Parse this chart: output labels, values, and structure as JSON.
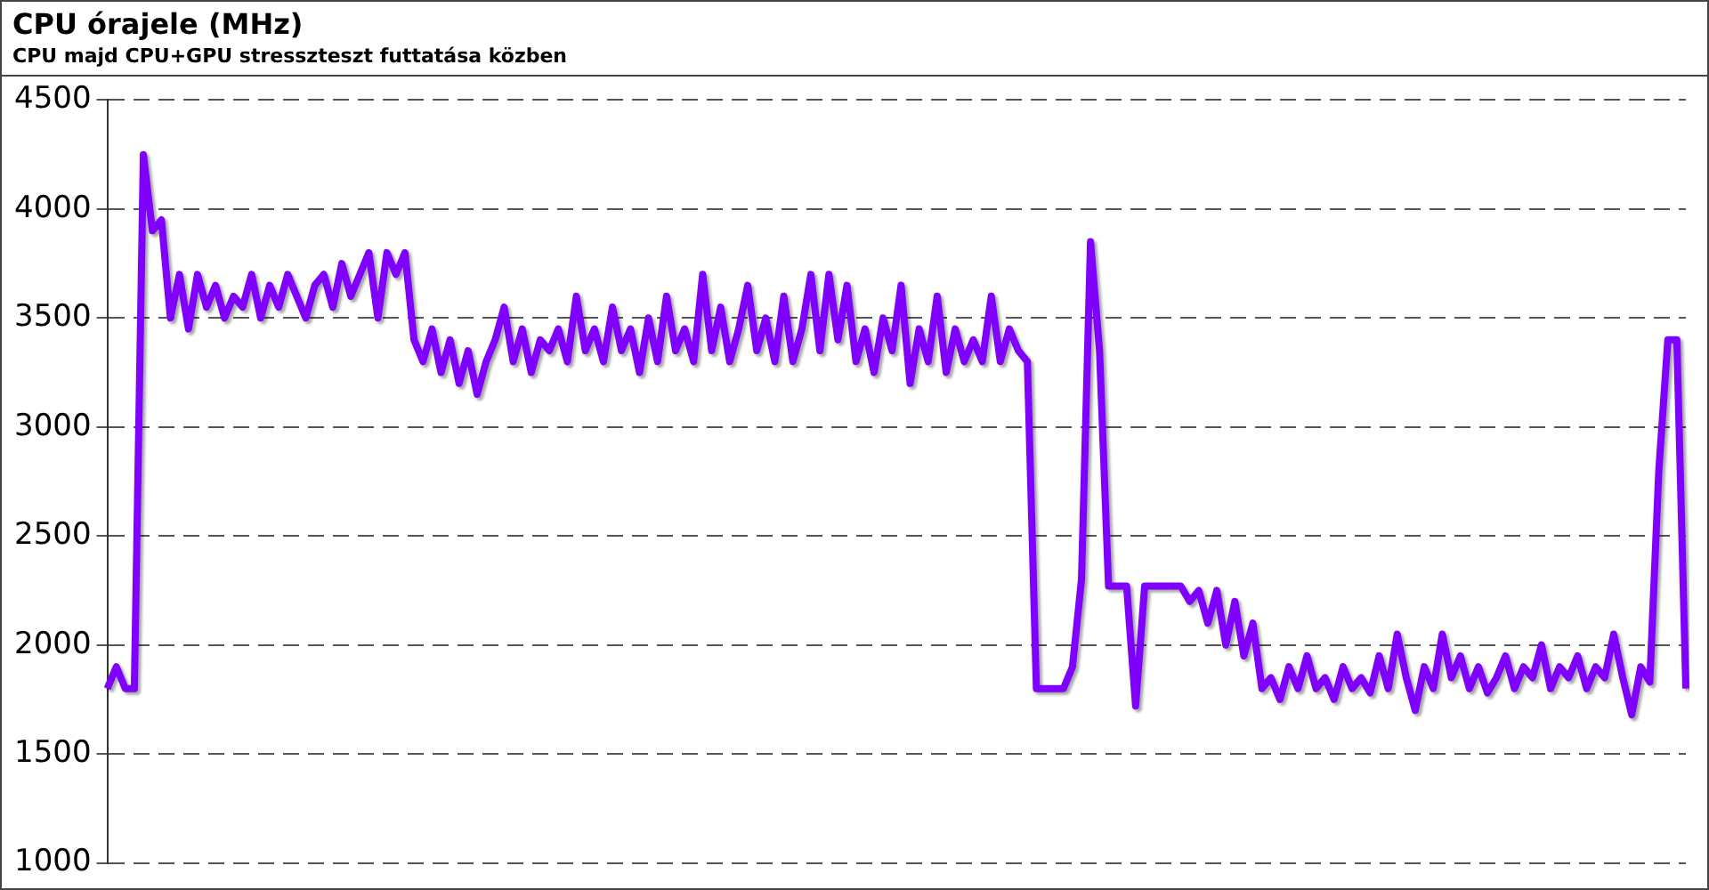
{
  "chart_data": {
    "type": "line",
    "title": "CPU órajele (MHz)",
    "subtitle": "CPU majd CPU+GPU stresszteszt futtatása közben",
    "categories": [
      null,
      null,
      null,
      null,
      null,
      null,
      null,
      null,
      null,
      null,
      null,
      null,
      null,
      null,
      null,
      null,
      null,
      null,
      null,
      null,
      null,
      null,
      null,
      null,
      null,
      null,
      null,
      null,
      null,
      null,
      null,
      null,
      null,
      null,
      null,
      null,
      null,
      null,
      null,
      null,
      null,
      null,
      null,
      null,
      null,
      null,
      null,
      null,
      null,
      null,
      null,
      null,
      null,
      null,
      null,
      null,
      null,
      null,
      null,
      null,
      null,
      null,
      null,
      null,
      null,
      null,
      null,
      null,
      null,
      null,
      null,
      null,
      null,
      null,
      null,
      null,
      null,
      null,
      null,
      null,
      null,
      null,
      null,
      null,
      null,
      null,
      null,
      null,
      null,
      null,
      null,
      null,
      null,
      null,
      null,
      null,
      null,
      null,
      null,
      null,
      null,
      null,
      null,
      null,
      null,
      null,
      null,
      null,
      null,
      null,
      null,
      null,
      null,
      null,
      null,
      null,
      null,
      null,
      null,
      null,
      null,
      null,
      null,
      null,
      null,
      null,
      null,
      null,
      null,
      null,
      null,
      null,
      null,
      null,
      null,
      null,
      null,
      null,
      null,
      null,
      null,
      null,
      null,
      null,
      null,
      null,
      null,
      null,
      null,
      null,
      null,
      null,
      null,
      null,
      null,
      null,
      null,
      null,
      null,
      null,
      null,
      null,
      null,
      null,
      null,
      null,
      null,
      null,
      null,
      null,
      null,
      null,
      null,
      null,
      null,
      null
    ],
    "series": [
      {
        "color": "#7f00ff",
        "values": [
          1800,
          1900,
          1800,
          1800,
          4250,
          3900,
          3950,
          3500,
          3700,
          3450,
          3700,
          3550,
          3650,
          3500,
          3600,
          3550,
          3700,
          3500,
          3650,
          3550,
          3700,
          3600,
          3500,
          3650,
          3700,
          3550,
          3750,
          3600,
          3700,
          3800,
          3500,
          3800,
          3700,
          3800,
          3400,
          3300,
          3450,
          3250,
          3400,
          3200,
          3350,
          3150,
          3300,
          3400,
          3550,
          3300,
          3450,
          3250,
          3400,
          3350,
          3450,
          3300,
          3600,
          3350,
          3450,
          3300,
          3550,
          3350,
          3450,
          3250,
          3500,
          3300,
          3600,
          3350,
          3450,
          3300,
          3700,
          3350,
          3550,
          3300,
          3450,
          3650,
          3350,
          3500,
          3300,
          3600,
          3300,
          3450,
          3700,
          3350,
          3700,
          3400,
          3650,
          3300,
          3450,
          3250,
          3500,
          3350,
          3650,
          3200,
          3450,
          3300,
          3600,
          3250,
          3450,
          3300,
          3400,
          3300,
          3600,
          3300,
          3450,
          3350,
          3300,
          1800,
          1800,
          1800,
          1800,
          1900,
          2300,
          3850,
          3350,
          2270,
          2270,
          2270,
          1720,
          2270,
          2270,
          2270,
          2270,
          2270,
          2200,
          2250,
          2100,
          2250,
          2000,
          2200,
          1950,
          2100,
          1800,
          1850,
          1750,
          1900,
          1800,
          1950,
          1800,
          1850,
          1750,
          1900,
          1800,
          1850,
          1780,
          1950,
          1800,
          2050,
          1850,
          1700,
          1900,
          1800,
          2050,
          1850,
          1950,
          1800,
          1900,
          1780,
          1850,
          1950,
          1800,
          1900,
          1850,
          2000,
          1800,
          1900,
          1850,
          1950,
          1800,
          1900,
          1850,
          2050,
          1850,
          1680,
          1900,
          1830,
          2800,
          3400,
          3400,
          1800
        ]
      }
    ],
    "ylim": [
      1000,
      4500
    ],
    "yticks": [
      1000,
      1500,
      2000,
      2500,
      3000,
      3500,
      4000,
      4500
    ],
    "grid": "y",
    "legend": false,
    "marker": "none",
    "line_style": "solid",
    "tick_labels": "y"
  }
}
